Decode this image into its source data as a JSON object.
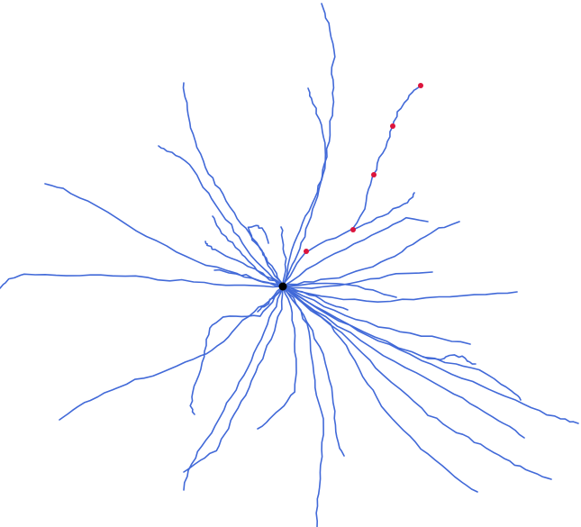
{
  "diagram": {
    "kind": "neuron-morphology-trace",
    "colors": {
      "background": "#ffffff",
      "dendrite": "#4169d8",
      "soma": "#000000",
      "marker": "#dc143c"
    },
    "soma_count": 1,
    "marker_count": 5,
    "dendrite_branch_count": 34
  }
}
